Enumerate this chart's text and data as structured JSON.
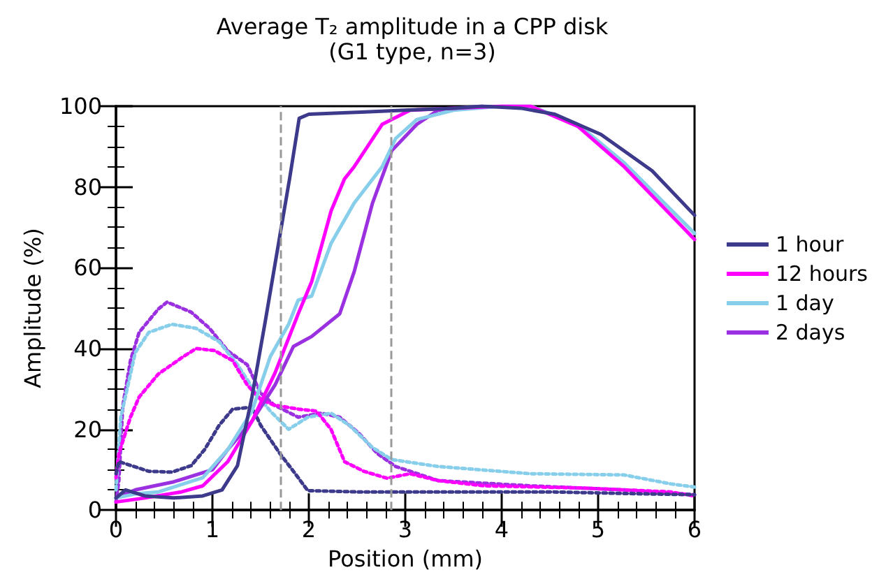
{
  "chart_data": {
    "type": "line",
    "title": "Average T₂ amplitude in a CPP disk",
    "subtitle": "(G1 type, n=3)",
    "xlabel": "Position (mm)",
    "ylabel": "Amplitude (%)",
    "xlim": [
      0,
      6
    ],
    "xticks": [
      0,
      1,
      2,
      3,
      4,
      5,
      6
    ],
    "ylim": [
      0,
      100
    ],
    "yticks": [
      0,
      20,
      40,
      60,
      80,
      100
    ],
    "grid": false,
    "legend": "right",
    "marker": "none",
    "line_style": "solid",
    "ref_lines": [
      {
        "axis": "x",
        "value": 1.7,
        "color": "#999999",
        "line_style": "dashed"
      },
      {
        "axis": "x",
        "value": 2.85,
        "color": "#999999",
        "line_style": "dashed"
      }
    ],
    "series": [
      {
        "name": "1 hour",
        "color": "#3d3a8c",
        "x": [
          0,
          0.1,
          0.3,
          0.6,
          0.9,
          1.1,
          1.26,
          1.41,
          1.55,
          1.7,
          1.8,
          1.9,
          2.0,
          2.5,
          3.0,
          3.5,
          3.8,
          4.2,
          4.55,
          5.03,
          5.56,
          6.0
        ],
        "values": [
          3,
          5,
          3.5,
          3,
          3.5,
          5,
          11,
          28,
          47,
          68,
          82,
          97,
          98,
          98.5,
          99,
          99.5,
          100,
          99.5,
          98,
          93,
          84,
          73
        ]
      },
      {
        "name": "12 hours",
        "color": "#ff00ff",
        "x": [
          0,
          0.3,
          0.68,
          0.9,
          1.16,
          1.41,
          1.65,
          1.89,
          2.03,
          2.23,
          2.37,
          2.47,
          2.76,
          3.05,
          3.5,
          4.0,
          4.3,
          4.79,
          5.27,
          6.0
        ],
        "values": [
          2,
          3,
          4.5,
          6,
          12,
          22,
          34,
          48.6,
          56.6,
          74,
          82,
          85,
          95.5,
          99,
          99.5,
          100,
          100,
          95,
          85,
          67
        ]
      },
      {
        "name": "1 day",
        "color": "#87ceeb",
        "x": [
          0,
          0.2,
          0.44,
          0.9,
          1.16,
          1.41,
          1.6,
          1.79,
          1.89,
          2.03,
          2.23,
          2.47,
          2.76,
          2.9,
          3.12,
          3.5,
          4.0,
          4.3,
          4.79,
          5.27,
          6.0
        ],
        "values": [
          3,
          4,
          4.5,
          8,
          15,
          24.5,
          38,
          46,
          52,
          53,
          66,
          76,
          85,
          92,
          96.7,
          99,
          100,
          100,
          95.5,
          86,
          68.5
        ]
      },
      {
        "name": "2 days",
        "color": "#9b30e0",
        "x": [
          0,
          0.2,
          0.6,
          1.0,
          1.16,
          1.41,
          1.65,
          1.84,
          2.03,
          2.32,
          2.47,
          2.66,
          2.86,
          3.12,
          3.34,
          3.8
        ],
        "values": [
          3,
          5,
          7,
          10,
          15,
          22,
          31,
          40.5,
          43,
          48.6,
          59,
          76,
          89,
          95.5,
          99,
          100
        ]
      },
      {
        "color": "#3d3a8c",
        "line_style": "dotted",
        "x": [
          0,
          0.03,
          0.34,
          0.58,
          0.78,
          0.92,
          1.07,
          1.21,
          1.41,
          1.5,
          1.7,
          1.84,
          1.99,
          2.5,
          3.5,
          4.5,
          5.5,
          6.0
        ],
        "values": [
          9,
          12,
          9.6,
          9.4,
          11,
          15,
          21,
          25,
          25.5,
          21,
          14,
          9.6,
          4.8,
          4.5,
          4.5,
          4.5,
          4,
          3.8
        ]
      },
      {
        "color": "#ff00ff",
        "line_style": "dotted",
        "x": [
          0,
          0.03,
          0.15,
          0.24,
          0.44,
          0.68,
          0.83,
          1.02,
          1.21,
          1.36,
          1.5,
          1.64,
          1.89,
          2.08,
          2.23,
          2.37,
          2.57,
          2.81,
          3.05,
          3.34,
          3.82,
          4.79,
          5.75,
          6.0
        ],
        "values": [
          8,
          14,
          23,
          28,
          33.7,
          37.7,
          40,
          39.5,
          37,
          31,
          27.4,
          26,
          25,
          24.5,
          20,
          12,
          9.6,
          7.9,
          9,
          7.3,
          6,
          5.5,
          4.5,
          3.5
        ]
      },
      {
        "color": "#87ceeb",
        "line_style": "dotted",
        "x": [
          0,
          0.05,
          0.2,
          0.34,
          0.58,
          0.83,
          1.07,
          1.26,
          1.45,
          1.6,
          1.79,
          1.99,
          2.23,
          2.42,
          2.66,
          2.86,
          3.34,
          4.3,
          5.27,
          5.75,
          6.0
        ],
        "values": [
          5,
          23,
          39,
          44,
          46,
          45,
          41.7,
          36,
          29,
          24.5,
          20,
          23,
          24,
          21,
          15.5,
          12.5,
          10.8,
          9,
          8.7,
          6.5,
          5.7
        ]
      },
      {
        "color": "#9b30e0",
        "line_style": "dotted",
        "x": [
          0,
          0.03,
          0.07,
          0.15,
          0.24,
          0.44,
          0.53,
          0.78,
          0.97,
          1.16,
          1.36,
          1.5,
          1.64,
          1.89,
          2.13,
          2.32,
          2.52,
          2.71,
          2.9,
          3.34,
          4.3,
          5.27,
          6.0
        ],
        "values": [
          2,
          7.3,
          25.7,
          37,
          44,
          49.8,
          51.5,
          49,
          45,
          39.4,
          36,
          29,
          26,
          23,
          24,
          23,
          19,
          14,
          10.8,
          7.3,
          6,
          5,
          3.8
        ]
      }
    ]
  }
}
